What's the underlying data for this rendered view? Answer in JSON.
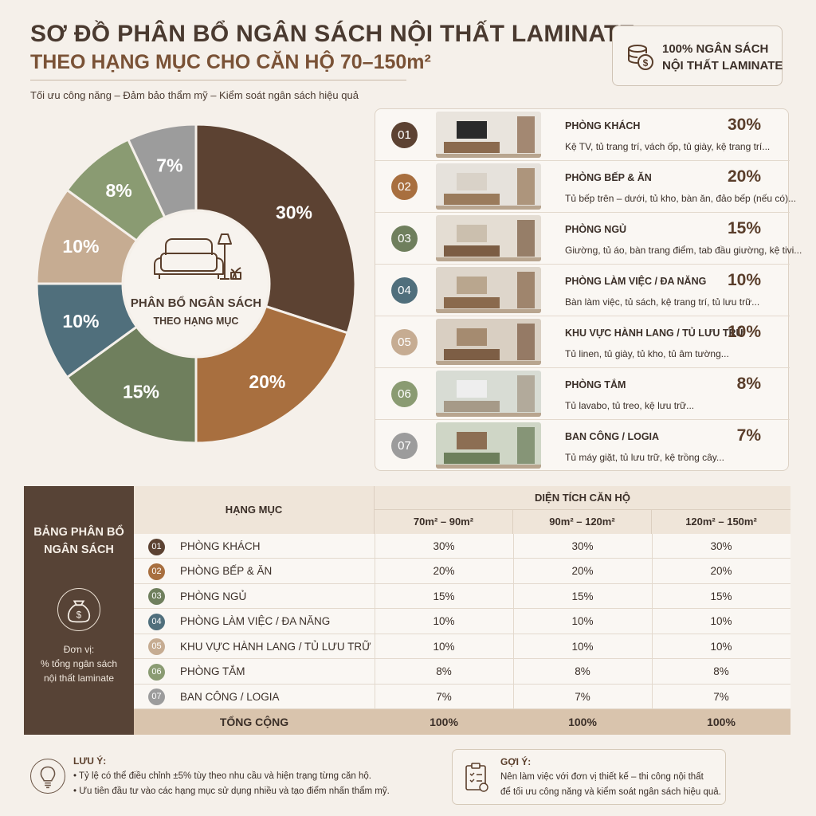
{
  "header": {
    "title": "SƠ ĐỒ PHÂN BỔ NGÂN SÁCH NỘI THẤT LAMINATE",
    "subtitle": "THEO HẠNG MỤC CHO CĂN HỘ 70–150m²",
    "tagline": "Tối ưu công năng – Đảm bảo thẩm mỹ – Kiểm soát ngân sách hiệu quả",
    "budget_line1": "100% NGÂN SÁCH",
    "budget_line2": "NỘI THẤT LAMINATE"
  },
  "chart_data": {
    "type": "pie",
    "title": "",
    "center_line1": "PHÂN BỔ NGÂN SÁCH",
    "center_line2": "THEO HẠNG MỤC",
    "slices": [
      {
        "label": "PHÒNG KHÁCH",
        "value": 30,
        "display": "30%",
        "color": "#5c4232"
      },
      {
        "label": "PHÒNG BẾP & ĂN",
        "value": 20,
        "display": "20%",
        "color": "#a86f3f"
      },
      {
        "label": "PHÒNG NGỦ",
        "value": 15,
        "display": "15%",
        "color": "#6f7f5d"
      },
      {
        "label": "PHÒNG LÀM VIỆC / ĐA NĂNG",
        "value": 10,
        "display": "10%",
        "color": "#506f7c"
      },
      {
        "label": "KHU VỰC HÀNH LANG / TỦ LƯU TRỮ",
        "value": 10,
        "display": "10%",
        "color": "#c6ac92"
      },
      {
        "label": "PHÒNG TẮM",
        "value": 8,
        "display": "8%",
        "color": "#8a9b72"
      },
      {
        "label": "BAN CÔNG / LOGIA",
        "value": 7,
        "display": "7%",
        "color": "#9c9c9c"
      }
    ]
  },
  "categories": [
    {
      "num": "01",
      "name": "PHÒNG KHÁCH",
      "pct": "30%",
      "desc": "Kệ TV, tủ trang trí, vách ốp, tủ giày, kệ trang trí...",
      "color": "#5c4232"
    },
    {
      "num": "02",
      "name": "PHÒNG BẾP & ĂN",
      "pct": "20%",
      "desc": "Tủ bếp trên – dưới, tủ kho, bàn ăn, đảo bếp (nếu có)...",
      "color": "#a86f3f"
    },
    {
      "num": "03",
      "name": "PHÒNG NGỦ",
      "pct": "15%",
      "desc": "Giường, tủ áo, bàn trang điểm, tab đầu giường, kệ tivi...",
      "color": "#6f7f5d"
    },
    {
      "num": "04",
      "name": "PHÒNG LÀM VIỆC / ĐA NĂNG",
      "pct": "10%",
      "desc": "Bàn làm việc, tủ sách, kệ trang trí, tủ lưu trữ...",
      "color": "#506f7c"
    },
    {
      "num": "05",
      "name": "KHU VỰC HÀNH LANG / TỦ LƯU TRỮ",
      "pct": "10%",
      "desc": "Tủ linen, tủ giày, tủ kho, tủ âm tường...",
      "color": "#c6ac92"
    },
    {
      "num": "06",
      "name": "PHÒNG TẮM",
      "pct": "8%",
      "desc": "Tủ lavabo, tủ treo, kệ lưu trữ...",
      "color": "#8a9b72"
    },
    {
      "num": "07",
      "name": "BAN CÔNG / LOGIA",
      "pct": "7%",
      "desc": "Tủ máy giặt, tủ lưu trữ, kệ trồng cây...",
      "color": "#9c9c9c"
    }
  ],
  "table": {
    "side_title_line1": "BẢNG PHÂN BỔ",
    "side_title_line2": "NGÂN SÁCH",
    "unit_line1": "Đơn vị:",
    "unit_line2": "% tổng ngân sách",
    "unit_line3": "nội thất laminate",
    "col_category": "HẠNG MỤC",
    "col_group": "DIỆN TÍCH CĂN HỘ",
    "cols": [
      "70m² – 90m²",
      "90m² – 120m²",
      "120m² – 150m²"
    ],
    "rows": [
      {
        "num": "01",
        "name": "PHÒNG KHÁCH",
        "values": [
          "30%",
          "30%",
          "30%"
        ],
        "color": "#5c4232"
      },
      {
        "num": "02",
        "name": "PHÒNG BẾP & ĂN",
        "values": [
          "20%",
          "20%",
          "20%"
        ],
        "color": "#a86f3f"
      },
      {
        "num": "03",
        "name": "PHÒNG NGỦ",
        "values": [
          "15%",
          "15%",
          "15%"
        ],
        "color": "#6f7f5d"
      },
      {
        "num": "04",
        "name": "PHÒNG LÀM VIỆC / ĐA NĂNG",
        "values": [
          "10%",
          "10%",
          "10%"
        ],
        "color": "#506f7c"
      },
      {
        "num": "05",
        "name": "KHU VỰC HÀNH LANG / TỦ LƯU TRỮ",
        "values": [
          "10%",
          "10%",
          "10%"
        ],
        "color": "#c6ac92"
      },
      {
        "num": "06",
        "name": "PHÒNG TẮM",
        "values": [
          "8%",
          "8%",
          "8%"
        ],
        "color": "#8a9b72"
      },
      {
        "num": "07",
        "name": "BAN CÔNG / LOGIA",
        "values": [
          "7%",
          "7%",
          "7%"
        ],
        "color": "#9c9c9c"
      }
    ],
    "total_label": "TỔNG CỘNG",
    "totals": [
      "100%",
      "100%",
      "100%"
    ]
  },
  "note": {
    "title": "LƯU Ý:",
    "line1": "• Tỷ lệ có thể điều chỉnh ±5% tùy theo nhu cầu và hiện trạng từng căn hộ.",
    "line2": "• Ưu tiên đầu tư vào các hạng mục sử dụng nhiều và tạo điểm nhấn thẩm mỹ."
  },
  "tip": {
    "title": "GỢI Ý:",
    "line1": "Nên làm việc với đơn vị thiết kế – thi công nội thất",
    "line2": "để tối ưu công năng và kiểm soát ngân sách hiệu quả."
  }
}
